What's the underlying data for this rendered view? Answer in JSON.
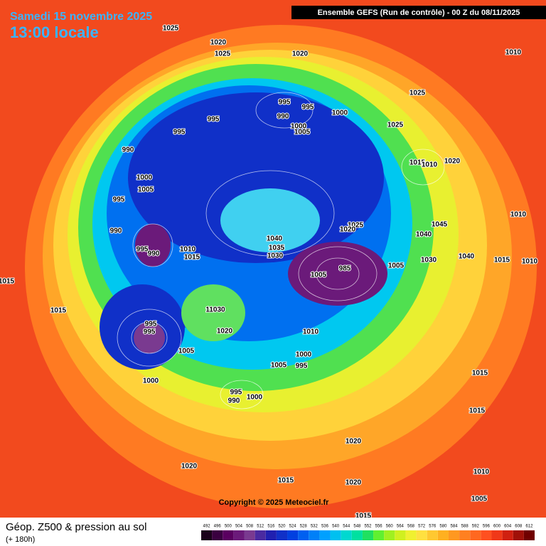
{
  "header": {
    "date": "Samedi 15 novembre 2025",
    "time": "13:00 locale",
    "model": "Ensemble GEFS  (Run de contrôle)  -  00 Z du 08/11/2025"
  },
  "footer": {
    "title": "Géop. Z500 & pression au sol",
    "lead": "(+ 180h)",
    "copyright": "Copyright © 2025 Meteociel.fr"
  },
  "legend": {
    "values": [
      492,
      496,
      500,
      504,
      508,
      512,
      516,
      520,
      524,
      528,
      532,
      536,
      540,
      544,
      548,
      552,
      556,
      560,
      564,
      568,
      572,
      576,
      580,
      584,
      588,
      592,
      596,
      600,
      604,
      608,
      612
    ],
    "colors": [
      "#1a001a",
      "#3a0040",
      "#5a0060",
      "#6b1a7a",
      "#7a3a90",
      "#4a2aa0",
      "#2020b0",
      "#1030c8",
      "#0040e0",
      "#0060f0",
      "#0080f8",
      "#00a0ff",
      "#00c0f0",
      "#00d8d0",
      "#00e0a0",
      "#20e060",
      "#60f030",
      "#a0f020",
      "#d0f020",
      "#f0f030",
      "#ffe040",
      "#ffc830",
      "#ffb020",
      "#ff9820",
      "#ff8020",
      "#ff6820",
      "#ff5020",
      "#f03818",
      "#d02010",
      "#a01008",
      "#700000"
    ]
  },
  "isobar_labels": [
    "1025",
    "1020",
    "1025",
    "1020",
    "1010",
    "1025",
    "995",
    "995",
    "990",
    "1000",
    "1000",
    "1005",
    "995",
    "995",
    "1025",
    "990",
    "1015",
    "1010",
    "1020",
    "1000",
    "1005",
    "995",
    "1010",
    "1045",
    "1025",
    "1020",
    "990",
    "1040",
    "1040",
    "1035",
    "1030",
    "1010",
    "995",
    "990",
    "1015",
    "1030",
    "1040",
    "1015",
    "1010",
    "985",
    "1005",
    "1005",
    "1015",
    "1015",
    "11030",
    "995",
    "995",
    "1020",
    "1010",
    "1005",
    "1000",
    "1005",
    "995",
    "1015",
    "1000",
    "995",
    "1000",
    "990",
    "1015",
    "1020",
    "1020",
    "1010",
    "1015",
    "1020",
    "1005",
    "1015"
  ]
}
